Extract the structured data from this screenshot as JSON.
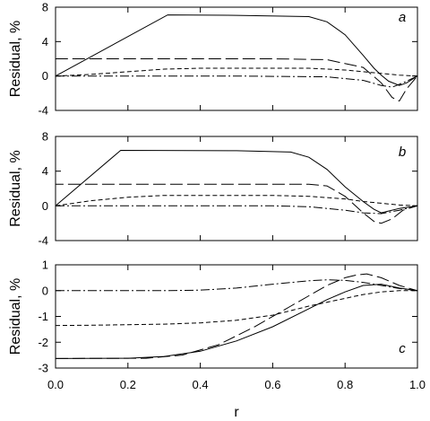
{
  "chart_data": [
    {
      "type": "line",
      "panel_label": "a",
      "ylabel": "Residual, %",
      "xlim": [
        0,
        1
      ],
      "ylim": [
        -4,
        8
      ],
      "yticks": [
        "-4",
        "0",
        "4",
        "8"
      ],
      "yticks_values": [
        -4,
        0,
        4,
        8
      ],
      "series": [
        {
          "style": "solid",
          "x": [
            0,
            0.31,
            0.5,
            0.7,
            0.75,
            0.8,
            0.85,
            0.88,
            0.9,
            0.92,
            0.95,
            0.97,
            1.0
          ],
          "y": [
            0,
            7.1,
            7.05,
            6.9,
            6.3,
            4.8,
            2.4,
            0.9,
            0.1,
            -0.6,
            -1.1,
            -0.8,
            0
          ]
        },
        {
          "style": "long-dash",
          "x": [
            0,
            0.0001,
            0.6,
            0.75,
            0.85,
            0.9,
            0.93,
            0.95,
            0.97,
            1.0
          ],
          "y": [
            0,
            2.0,
            2.0,
            1.9,
            1.0,
            -0.8,
            -2.5,
            -2.9,
            -1.5,
            0
          ]
        },
        {
          "style": "short-dash",
          "x": [
            0,
            0.1,
            0.2,
            0.3,
            0.4,
            0.6,
            0.7,
            0.8,
            0.85,
            0.9,
            0.95,
            1.0
          ],
          "y": [
            0,
            0.2,
            0.5,
            0.8,
            0.9,
            0.9,
            0.9,
            0.7,
            0.5,
            0.3,
            0.1,
            0
          ]
        },
        {
          "style": "dash-dot",
          "x": [
            0,
            0.5,
            0.75,
            0.85,
            0.9,
            0.93,
            0.96,
            1.0
          ],
          "y": [
            0,
            0.0,
            -0.1,
            -0.5,
            -1.1,
            -1.3,
            -0.8,
            0
          ]
        }
      ]
    },
    {
      "type": "line",
      "panel_label": "b",
      "ylabel": "Residual, %",
      "xlim": [
        0,
        1
      ],
      "ylim": [
        -4,
        8
      ],
      "yticks": [
        "-4",
        "0",
        "4",
        "8"
      ],
      "yticks_values": [
        -4,
        0,
        4,
        8
      ],
      "series": [
        {
          "style": "solid",
          "x": [
            0,
            0.18,
            0.5,
            0.65,
            0.7,
            0.75,
            0.8,
            0.85,
            0.88,
            0.9,
            0.92,
            0.95,
            1.0
          ],
          "y": [
            0,
            6.4,
            6.35,
            6.2,
            5.6,
            4.2,
            2.2,
            0.5,
            -0.4,
            -0.8,
            -0.6,
            -0.3,
            0
          ]
        },
        {
          "style": "long-dash",
          "x": [
            0,
            0.0001,
            0.7,
            0.75,
            0.8,
            0.85,
            0.88,
            0.9,
            0.93,
            0.96,
            1.0
          ],
          "y": [
            0,
            2.5,
            2.5,
            2.3,
            1.1,
            -0.8,
            -1.8,
            -2.0,
            -1.5,
            -0.5,
            0
          ]
        },
        {
          "style": "short-dash",
          "x": [
            0,
            0.1,
            0.2,
            0.3,
            0.6,
            0.7,
            0.8,
            0.85,
            0.9,
            0.95,
            1.0
          ],
          "y": [
            0,
            0.6,
            1.0,
            1.2,
            1.2,
            1.1,
            0.8,
            0.5,
            0.3,
            0.1,
            0
          ]
        },
        {
          "style": "dash-dot",
          "x": [
            0,
            0.6,
            0.7,
            0.8,
            0.85,
            0.9,
            0.95,
            1.0
          ],
          "y": [
            0,
            0.0,
            -0.1,
            -0.5,
            -0.8,
            -0.9,
            -0.5,
            0
          ]
        }
      ]
    },
    {
      "type": "line",
      "panel_label": "c",
      "ylabel": "Residual, %",
      "xlabel": "r",
      "xlim": [
        0,
        1
      ],
      "ylim": [
        -3,
        1
      ],
      "yticks": [
        "-3",
        "-2",
        "-1",
        "0",
        "1"
      ],
      "yticks_values": [
        -3,
        -2,
        -1,
        0,
        1
      ],
      "xticks": [
        "0.0",
        "0.2",
        "0.4",
        "0.6",
        "0.8",
        "1.0"
      ],
      "xticks_values": [
        0,
        0.2,
        0.4,
        0.6,
        0.8,
        1.0
      ],
      "series": [
        {
          "style": "solid",
          "x": [
            0,
            0.2,
            0.3,
            0.4,
            0.5,
            0.6,
            0.7,
            0.75,
            0.8,
            0.85,
            0.9,
            0.95,
            1.0
          ],
          "y": [
            -2.63,
            -2.62,
            -2.55,
            -2.35,
            -1.95,
            -1.4,
            -0.7,
            -0.35,
            -0.05,
            0.2,
            0.25,
            0.1,
            0
          ]
        },
        {
          "style": "long-dash",
          "x": [
            0,
            0.25,
            0.35,
            0.45,
            0.55,
            0.65,
            0.7,
            0.75,
            0.8,
            0.83,
            0.86,
            0.9,
            0.95,
            1.0
          ],
          "y": [
            -2.63,
            -2.62,
            -2.5,
            -2.1,
            -1.4,
            -0.6,
            -0.2,
            0.2,
            0.5,
            0.6,
            0.65,
            0.5,
            0.2,
            0
          ]
        },
        {
          "style": "short-dash",
          "x": [
            0,
            0.1,
            0.2,
            0.3,
            0.4,
            0.5,
            0.6,
            0.7,
            0.8,
            0.85,
            0.9,
            0.95,
            1.0
          ],
          "y": [
            -1.35,
            -1.34,
            -1.32,
            -1.3,
            -1.25,
            -1.15,
            -0.95,
            -0.6,
            -0.3,
            -0.15,
            -0.05,
            0,
            0
          ]
        },
        {
          "style": "dash-dot",
          "x": [
            0,
            0.3,
            0.4,
            0.5,
            0.6,
            0.7,
            0.75,
            0.8,
            0.85,
            0.9,
            0.95,
            1.0
          ],
          "y": [
            0,
            0,
            0.02,
            0.1,
            0.25,
            0.38,
            0.42,
            0.4,
            0.32,
            0.2,
            0.08,
            0
          ]
        }
      ]
    }
  ]
}
